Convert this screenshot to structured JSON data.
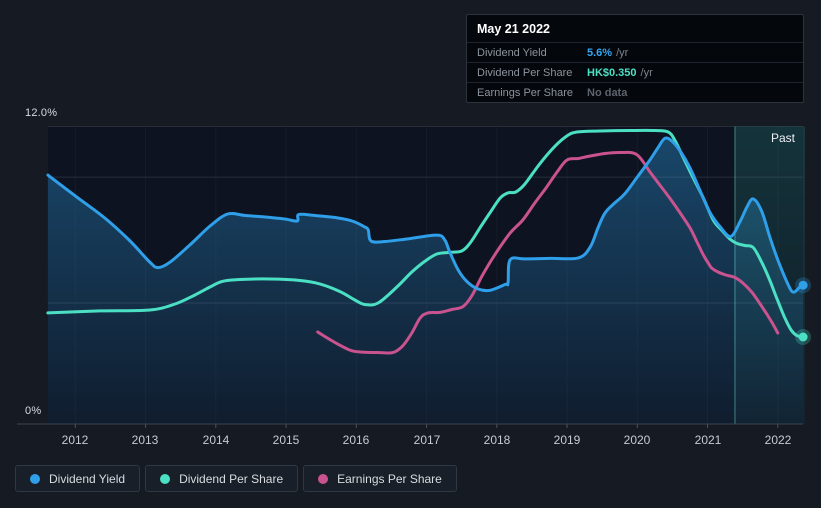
{
  "colors": {
    "dividend_yield": "#2e9fe8",
    "dividend_per_share": "#4be0c3",
    "earnings_per_share": "#c9538e",
    "tooltip_yield_value": "#33a7f2",
    "tooltip_dps_value": "#4ce0c4",
    "tooltip_no_data": "#5d646d",
    "past_band": "#38c6b5"
  },
  "tooltip": {
    "date": "May 21 2022",
    "rows": [
      {
        "label": "Dividend Yield",
        "value": "5.6%",
        "suffix": "/yr",
        "value_color": "#33a7f2"
      },
      {
        "label": "Dividend Per Share",
        "value": "HK$0.350",
        "suffix": "/yr",
        "value_color": "#4ce0c4"
      },
      {
        "label": "Earnings Per Share",
        "value": "No data",
        "suffix": "",
        "value_color": "#5d646d"
      }
    ]
  },
  "legend": [
    {
      "label": "Dividend Yield",
      "color": "#2e9fe8"
    },
    {
      "label": "Dividend Per Share",
      "color": "#4be0c3"
    },
    {
      "label": "Earnings Per Share",
      "color": "#c9538e"
    }
  ],
  "chart_data": {
    "type": "line",
    "title": "",
    "xlabel": "",
    "ylabel": "",
    "y_top_label": "12.0%",
    "y_zero_label": "0%",
    "past_label": "Past",
    "ylim": [
      0,
      12.0
    ],
    "grid": "horizontal-faint",
    "legend_position": "bottom-left",
    "x_ticks": [
      "2012",
      "2013",
      "2014",
      "2015",
      "2016",
      "2017",
      "2018",
      "2019",
      "2020",
      "2021",
      "2022"
    ],
    "x_tick_years": [
      2012,
      2013,
      2014,
      2015,
      2016,
      2017,
      2018,
      2019,
      2020,
      2021,
      2022
    ],
    "gridlines_pct": [
      12.0,
      9.96,
      4.88
    ],
    "past_band_start_year": 2021.39,
    "x_range_years": [
      2011.61,
      2022.36
    ],
    "series": [
      {
        "name": "Dividend Yield",
        "unit": "%",
        "color": "#2e9fe8",
        "end_marker": true,
        "area_fill": true,
        "points": [
          [
            2011.61,
            10.04
          ],
          [
            2012.0,
            9.2
          ],
          [
            2012.42,
            8.31
          ],
          [
            2012.78,
            7.38
          ],
          [
            2013.06,
            6.53
          ],
          [
            2013.18,
            6.31
          ],
          [
            2013.35,
            6.53
          ],
          [
            2013.63,
            7.22
          ],
          [
            2013.92,
            7.99
          ],
          [
            2014.17,
            8.47
          ],
          [
            2014.42,
            8.41
          ],
          [
            2014.7,
            8.35
          ],
          [
            2014.98,
            8.27
          ],
          [
            2015.16,
            8.19
          ],
          [
            2015.18,
            8.45
          ],
          [
            2015.41,
            8.41
          ],
          [
            2015.7,
            8.33
          ],
          [
            2015.94,
            8.19
          ],
          [
            2016.12,
            7.95
          ],
          [
            2016.17,
            7.83
          ],
          [
            2016.21,
            7.38
          ],
          [
            2016.41,
            7.36
          ],
          [
            2016.76,
            7.48
          ],
          [
            2017.15,
            7.62
          ],
          [
            2017.26,
            7.42
          ],
          [
            2017.33,
            6.94
          ],
          [
            2017.45,
            6.21
          ],
          [
            2017.58,
            5.73
          ],
          [
            2017.73,
            5.45
          ],
          [
            2017.9,
            5.39
          ],
          [
            2018.12,
            5.63
          ],
          [
            2018.16,
            5.69
          ],
          [
            2018.19,
            6.62
          ],
          [
            2018.4,
            6.66
          ],
          [
            2018.76,
            6.68
          ],
          [
            2019.16,
            6.7
          ],
          [
            2019.33,
            7.14
          ],
          [
            2019.44,
            7.91
          ],
          [
            2019.54,
            8.51
          ],
          [
            2019.68,
            8.92
          ],
          [
            2019.82,
            9.28
          ],
          [
            2020.01,
            10.0
          ],
          [
            2020.18,
            10.65
          ],
          [
            2020.29,
            11.13
          ],
          [
            2020.39,
            11.52
          ],
          [
            2020.49,
            11.42
          ],
          [
            2020.61,
            11.01
          ],
          [
            2020.75,
            10.33
          ],
          [
            2020.89,
            9.44
          ],
          [
            2021.03,
            8.55
          ],
          [
            2021.18,
            7.95
          ],
          [
            2021.33,
            7.56
          ],
          [
            2021.46,
            8.15
          ],
          [
            2021.56,
            8.75
          ],
          [
            2021.65,
            9.08
          ],
          [
            2021.77,
            8.59
          ],
          [
            2021.9,
            7.42
          ],
          [
            2022.04,
            6.33
          ],
          [
            2022.17,
            5.49
          ],
          [
            2022.23,
            5.32
          ],
          [
            2022.3,
            5.49
          ],
          [
            2022.36,
            5.6
          ]
        ]
      },
      {
        "name": "Dividend Per Share",
        "unit": "HK$ equivalent",
        "color": "#4be0c3",
        "end_marker": true,
        "area_fill": false,
        "points": [
          [
            2011.61,
            4.48
          ],
          [
            2012.35,
            4.56
          ],
          [
            2013.06,
            4.6
          ],
          [
            2013.42,
            4.84
          ],
          [
            2013.7,
            5.2
          ],
          [
            2013.92,
            5.53
          ],
          [
            2014.09,
            5.75
          ],
          [
            2014.34,
            5.83
          ],
          [
            2014.77,
            5.85
          ],
          [
            2015.2,
            5.79
          ],
          [
            2015.48,
            5.65
          ],
          [
            2015.77,
            5.34
          ],
          [
            2015.98,
            5.0
          ],
          [
            2016.12,
            4.82
          ],
          [
            2016.31,
            4.88
          ],
          [
            2016.58,
            5.53
          ],
          [
            2016.79,
            6.13
          ],
          [
            2016.98,
            6.57
          ],
          [
            2017.15,
            6.86
          ],
          [
            2017.33,
            6.92
          ],
          [
            2017.5,
            6.98
          ],
          [
            2017.62,
            7.3
          ],
          [
            2017.76,
            7.91
          ],
          [
            2017.9,
            8.51
          ],
          [
            2018.05,
            9.12
          ],
          [
            2018.16,
            9.32
          ],
          [
            2018.27,
            9.36
          ],
          [
            2018.4,
            9.68
          ],
          [
            2018.61,
            10.49
          ],
          [
            2018.83,
            11.21
          ],
          [
            2019.0,
            11.62
          ],
          [
            2019.14,
            11.78
          ],
          [
            2019.47,
            11.82
          ],
          [
            2019.9,
            11.84
          ],
          [
            2020.25,
            11.84
          ],
          [
            2020.44,
            11.78
          ],
          [
            2020.54,
            11.42
          ],
          [
            2020.65,
            10.77
          ],
          [
            2020.79,
            9.96
          ],
          [
            2020.94,
            9.12
          ],
          [
            2021.08,
            8.23
          ],
          [
            2021.21,
            7.79
          ],
          [
            2021.32,
            7.46
          ],
          [
            2021.42,
            7.28
          ],
          [
            2021.53,
            7.2
          ],
          [
            2021.65,
            7.12
          ],
          [
            2021.77,
            6.53
          ],
          [
            2021.89,
            5.77
          ],
          [
            2021.99,
            5.04
          ],
          [
            2022.1,
            4.28
          ],
          [
            2022.19,
            3.79
          ],
          [
            2022.27,
            3.57
          ],
          [
            2022.36,
            3.51
          ]
        ]
      },
      {
        "name": "Earnings Per Share",
        "unit": "HK$ equivalent",
        "color": "#c9538e",
        "end_marker": false,
        "area_fill": false,
        "points": [
          [
            2015.45,
            3.71
          ],
          [
            2015.67,
            3.33
          ],
          [
            2015.91,
            2.98
          ],
          [
            2016.08,
            2.9
          ],
          [
            2016.34,
            2.88
          ],
          [
            2016.52,
            2.88
          ],
          [
            2016.66,
            3.15
          ],
          [
            2016.79,
            3.67
          ],
          [
            2016.91,
            4.28
          ],
          [
            2017.02,
            4.48
          ],
          [
            2017.19,
            4.5
          ],
          [
            2017.36,
            4.62
          ],
          [
            2017.52,
            4.74
          ],
          [
            2017.65,
            5.2
          ],
          [
            2017.79,
            5.97
          ],
          [
            2017.97,
            6.82
          ],
          [
            2018.19,
            7.7
          ],
          [
            2018.37,
            8.23
          ],
          [
            2018.54,
            8.91
          ],
          [
            2018.7,
            9.52
          ],
          [
            2018.86,
            10.17
          ],
          [
            2019.0,
            10.65
          ],
          [
            2019.16,
            10.71
          ],
          [
            2019.33,
            10.81
          ],
          [
            2019.54,
            10.91
          ],
          [
            2019.75,
            10.95
          ],
          [
            2019.99,
            10.87
          ],
          [
            2020.18,
            10.17
          ],
          [
            2020.32,
            9.64
          ],
          [
            2020.46,
            9.12
          ],
          [
            2020.61,
            8.51
          ],
          [
            2020.75,
            7.91
          ],
          [
            2020.85,
            7.34
          ],
          [
            2020.94,
            6.82
          ],
          [
            2021.01,
            6.49
          ],
          [
            2021.06,
            6.29
          ],
          [
            2021.15,
            6.13
          ],
          [
            2021.26,
            6.01
          ],
          [
            2021.39,
            5.91
          ],
          [
            2021.5,
            5.69
          ],
          [
            2021.63,
            5.32
          ],
          [
            2021.74,
            4.88
          ],
          [
            2021.86,
            4.36
          ],
          [
            2021.93,
            4.03
          ],
          [
            2022.0,
            3.67
          ]
        ]
      }
    ]
  }
}
